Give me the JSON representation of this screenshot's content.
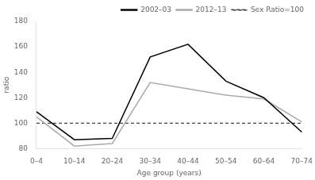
{
  "chart_data": {
    "type": "line",
    "categories": [
      "0–4",
      "10–14",
      "20–24",
      "30–34",
      "40–44",
      "50–54",
      "60–64",
      "70–74"
    ],
    "series": [
      {
        "name": "2002–03",
        "color": "#000000",
        "values": [
          109,
          87,
          88,
          152,
          162,
          133,
          120,
          93
        ]
      },
      {
        "name": "2012–13",
        "color": "#aaaaaa",
        "values": [
          105,
          82,
          84,
          132,
          127,
          122,
          119,
          101
        ]
      }
    ],
    "reference_line": {
      "name": "Sex Ratio=100",
      "value": 100,
      "color": "#444444",
      "line_style": "dashed"
    },
    "xlabel": "Age group (years)",
    "ylabel": "ratio",
    "ylim": [
      80,
      180
    ],
    "yticks": [
      80,
      100,
      120,
      140,
      160,
      180
    ],
    "grid": false,
    "legend": "upper right"
  }
}
